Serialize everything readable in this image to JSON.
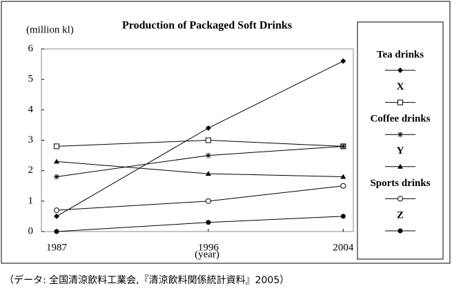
{
  "chart_data": {
    "type": "line",
    "title": "Production of Packaged Soft Drinks",
    "y_label": "(million kl)",
    "x_label": "(year)",
    "source": "（データ: 全国清涼飲料工業会,『清涼飲料関係統計資料』2005）",
    "x": [
      1987,
      1996,
      2004
    ],
    "xlim": [
      1986.1,
      2004.6
    ],
    "xticks": [
      1987,
      1996,
      2004
    ],
    "ylim": [
      0,
      6
    ],
    "yticks": [
      0,
      1,
      2,
      3,
      4,
      5,
      6
    ],
    "series": [
      {
        "name": "Tea drinks",
        "color": "#000000",
        "marker": "diamond",
        "values": [
          0.5,
          3.4,
          5.6
        ]
      },
      {
        "name": "X",
        "color": "#000000",
        "marker": "square-open",
        "values": [
          2.8,
          3.0,
          2.8
        ]
      },
      {
        "name": "Coffee drinks",
        "color": "#000000",
        "marker": "asterisk",
        "values": [
          1.8,
          2.5,
          2.8
        ]
      },
      {
        "name": "Y",
        "color": "#000000",
        "marker": "triangle",
        "values": [
          2.3,
          1.9,
          1.8
        ]
      },
      {
        "name": "Sports drinks",
        "color": "#000000",
        "marker": "circle-open",
        "values": [
          0.7,
          1.0,
          1.5
        ]
      },
      {
        "name": "Z",
        "color": "#000000",
        "marker": "circle",
        "values": [
          0,
          0.3,
          0.5
        ]
      }
    ]
  }
}
